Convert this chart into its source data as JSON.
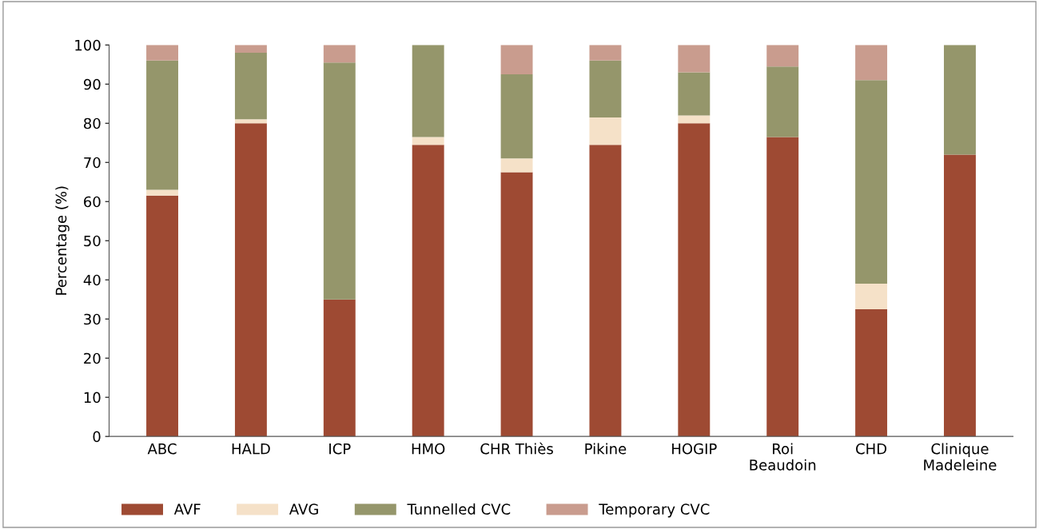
{
  "chart_data": {
    "type": "bar",
    "stacked": true,
    "ylabel": "Percentage (%)",
    "categories": [
      "ABC",
      "HALD",
      "ICP",
      "HMO",
      "CHR Thiès",
      "Pikine",
      "HOGIP",
      "Roi\nBeaudoin",
      "CHD",
      "Clinique\nMadeleine"
    ],
    "series": [
      {
        "name": "AVF",
        "color": "#9e4a33",
        "values": [
          61.5,
          80,
          35,
          74.5,
          67.5,
          74.5,
          80,
          76.5,
          32.5,
          72
        ]
      },
      {
        "name": "AVG",
        "color": "#f5e1c8",
        "values": [
          1.5,
          1,
          0,
          2,
          3.5,
          7,
          2,
          0,
          6.5,
          0
        ]
      },
      {
        "name": "Tunnelled CVC",
        "color": "#95966b",
        "values": [
          33,
          17,
          60.5,
          23.5,
          21.5,
          14.5,
          11,
          18,
          52,
          28
        ]
      },
      {
        "name": "Temporary CVC",
        "color": "#c99c8e",
        "values": [
          4,
          2,
          4.5,
          0,
          7.5,
          4,
          7,
          5.5,
          9,
          0
        ]
      }
    ],
    "ylim": [
      0,
      100
    ],
    "yticks": [
      0,
      10,
      20,
      30,
      40,
      50,
      60,
      70,
      80,
      90,
      100
    ],
    "grid": false,
    "legend": "bottom left"
  }
}
